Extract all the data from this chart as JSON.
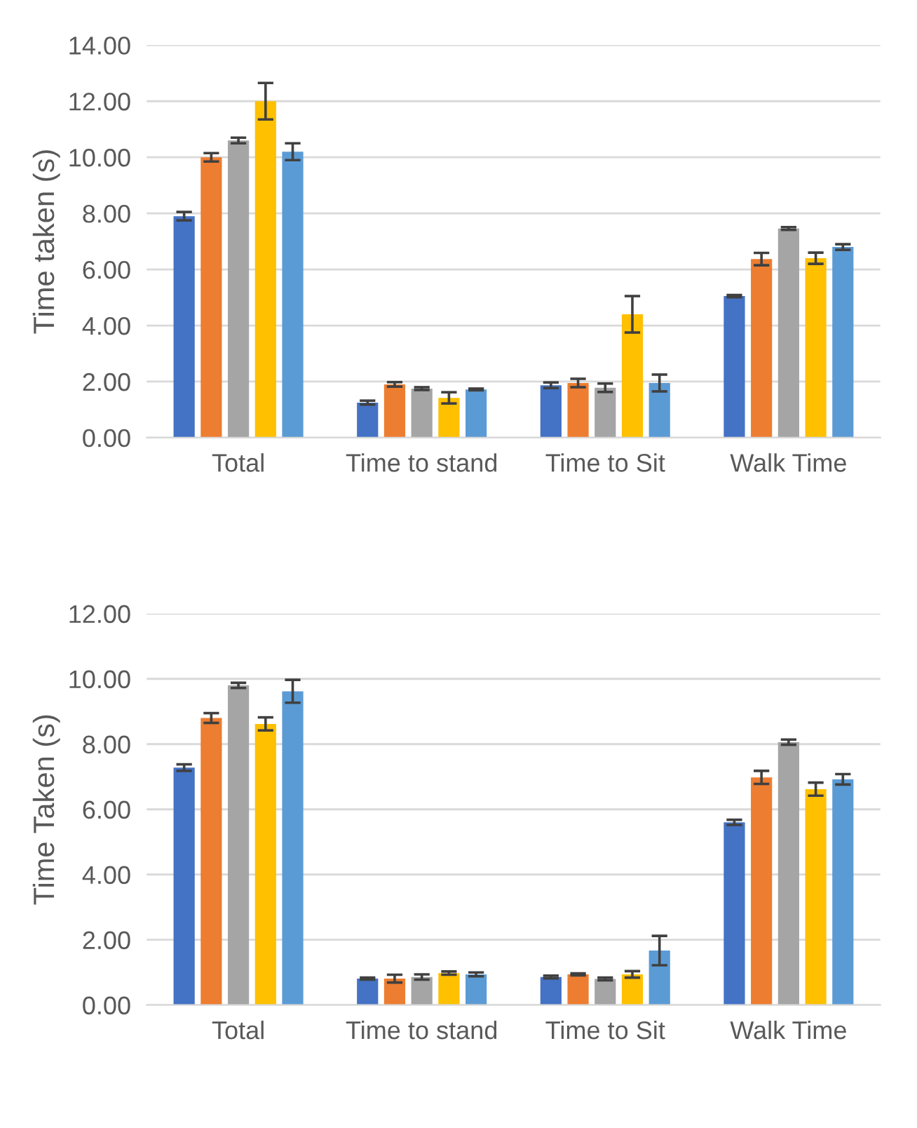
{
  "chart_data": [
    {
      "type": "bar",
      "ylabel": "Time taken (s)",
      "categories": [
        "Total",
        "Time to stand",
        "Time to Sit",
        "Walk Time"
      ],
      "ylim": [
        0,
        14
      ],
      "yticks": [
        {
          "value": 0,
          "label": "0.00"
        },
        {
          "value": 2,
          "label": "2.00"
        },
        {
          "value": 4,
          "label": "4.00"
        },
        {
          "value": 6,
          "label": "6.00"
        },
        {
          "value": 8,
          "label": "8.00"
        },
        {
          "value": 10,
          "label": "10.00"
        },
        {
          "value": 12,
          "label": "12.00"
        },
        {
          "value": 14,
          "label": "14.00"
        }
      ],
      "grid": "y",
      "series": [
        {
          "color": "#4472c4",
          "values": [
            7.9,
            1.25,
            1.87,
            5.05
          ],
          "errors": [
            0.15,
            0.07,
            0.1,
            0.04
          ]
        },
        {
          "color": "#ed7d31",
          "values": [
            10.0,
            1.9,
            1.95,
            6.37
          ],
          "errors": [
            0.15,
            0.08,
            0.15,
            0.22
          ]
        },
        {
          "color": "#a5a5a5",
          "values": [
            10.6,
            1.75,
            1.78,
            7.46
          ],
          "errors": [
            0.1,
            0.05,
            0.15,
            0.05
          ]
        },
        {
          "color": "#ffc000",
          "values": [
            12.0,
            1.42,
            4.4,
            6.4
          ],
          "errors": [
            0.65,
            0.2,
            0.65,
            0.2
          ]
        },
        {
          "color": "#5b9bd5",
          "values": [
            10.2,
            1.72,
            1.95,
            6.8
          ],
          "errors": [
            0.3,
            0.03,
            0.3,
            0.1
          ]
        }
      ]
    },
    {
      "type": "bar",
      "ylabel": "Time Taken (s)",
      "categories": [
        "Total",
        "Time to stand",
        "Time to Sit",
        "Walk Time"
      ],
      "ylim": [
        0,
        12
      ],
      "yticks": [
        {
          "value": 0,
          "label": "0.00"
        },
        {
          "value": 2,
          "label": "2.00"
        },
        {
          "value": 4,
          "label": "4.00"
        },
        {
          "value": 6,
          "label": "6.00"
        },
        {
          "value": 8,
          "label": "8.00"
        },
        {
          "value": 10,
          "label": "10.00"
        },
        {
          "value": 12,
          "label": "12.00"
        }
      ],
      "grid": "y",
      "series": [
        {
          "color": "#4472c4",
          "values": [
            7.28,
            0.81,
            0.86,
            5.6
          ],
          "errors": [
            0.1,
            0.03,
            0.04,
            0.08
          ]
        },
        {
          "color": "#ed7d31",
          "values": [
            8.8,
            0.81,
            0.94,
            6.98
          ],
          "errors": [
            0.15,
            0.12,
            0.03,
            0.2
          ]
        },
        {
          "color": "#a5a5a5",
          "values": [
            9.8,
            0.86,
            0.8,
            8.06
          ],
          "errors": [
            0.08,
            0.08,
            0.04,
            0.08
          ]
        },
        {
          "color": "#ffc000",
          "values": [
            8.62,
            0.98,
            0.94,
            6.62
          ],
          "errors": [
            0.2,
            0.05,
            0.1,
            0.2
          ]
        },
        {
          "color": "#5b9bd5",
          "values": [
            9.62,
            0.94,
            1.67,
            6.92
          ],
          "errors": [
            0.35,
            0.06,
            0.45,
            0.16
          ]
        }
      ]
    }
  ]
}
